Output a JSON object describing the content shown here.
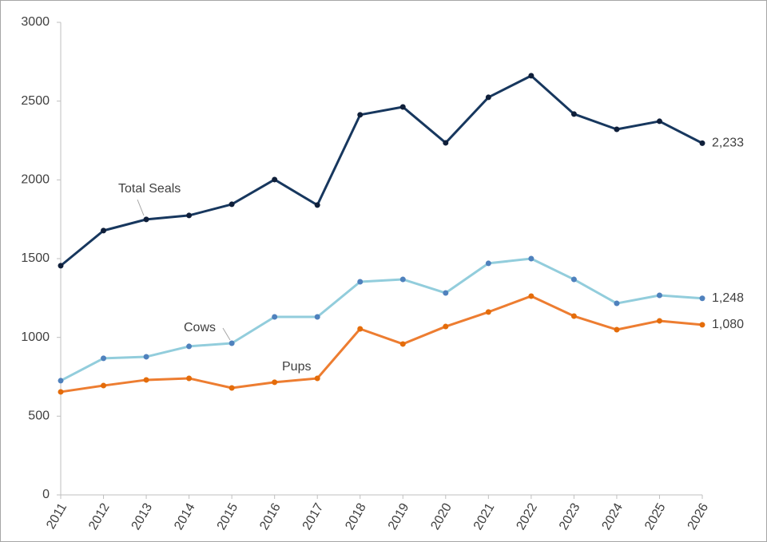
{
  "chart_data": {
    "type": "line",
    "x": [
      2011,
      2012,
      2013,
      2014,
      2015,
      2016,
      2017,
      2018,
      2019,
      2020,
      2021,
      2022,
      2023,
      2024,
      2025,
      2026
    ],
    "xlim": [
      2011,
      2026
    ],
    "xticks": [
      2011,
      2012,
      2013,
      2014,
      2015,
      2016,
      2017,
      2018,
      2019,
      2020,
      2021,
      2022,
      2023,
      2024,
      2025,
      2026
    ],
    "ylim": [
      0,
      3000
    ],
    "yticks": [
      0,
      500,
      1000,
      1500,
      2000,
      2500,
      3000
    ],
    "grid": false,
    "series": [
      {
        "name": "Total Seals",
        "color": "#17375e",
        "marker_color": "#0f1f3a",
        "values": [
          1455,
          1678,
          1749,
          1774,
          1845,
          2002,
          1840,
          2413,
          2463,
          2235,
          2524,
          2661,
          2418,
          2321,
          2372,
          2233
        ],
        "value_labels": [
          null,
          null,
          null,
          null,
          null,
          null,
          null,
          null,
          null,
          null,
          null,
          null,
          null,
          null,
          null,
          "2,233"
        ]
      },
      {
        "name": "Cows",
        "color": "#92cddc",
        "marker_color": "#4f81bd",
        "values": [
          725,
          867,
          877,
          943,
          963,
          1130,
          1130,
          1353,
          1368,
          1282,
          1470,
          1500,
          1368,
          1216,
          1267,
          1248
        ],
        "value_labels": [
          null,
          null,
          null,
          null,
          null,
          null,
          null,
          null,
          null,
          null,
          null,
          null,
          null,
          null,
          null,
          "1,248"
        ]
      },
      {
        "name": "Pups",
        "color": "#ed7d31",
        "marker_color": "#e46c0a",
        "values": [
          654,
          694,
          730,
          740,
          679,
          715,
          740,
          1054,
          958,
          1069,
          1161,
          1262,
          1135,
          1049,
          1105,
          1080
        ],
        "value_labels": [
          null,
          null,
          null,
          null,
          null,
          null,
          null,
          null,
          null,
          null,
          null,
          null,
          null,
          null,
          null,
          "1,080"
        ]
      }
    ]
  }
}
